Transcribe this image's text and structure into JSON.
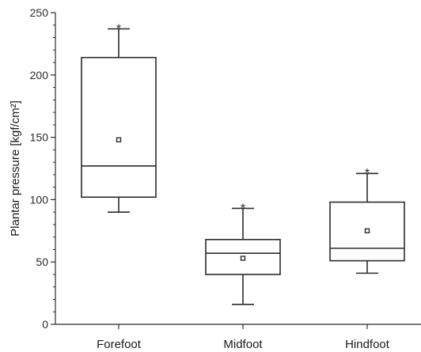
{
  "chart_data": {
    "type": "box",
    "categories": [
      "Forefoot",
      "Midfoot",
      "Hindfoot"
    ],
    "ylabel": "Plantar pressure [kgf/cm²]",
    "ylim": [
      0,
      250
    ],
    "yticks": [
      0,
      50,
      100,
      150,
      200,
      250
    ],
    "minor_tick_step": 10,
    "series": [
      {
        "category": "Forefoot",
        "whisker_low": 90,
        "q1": 102,
        "median": 127,
        "q3": 214,
        "whisker_high": 237,
        "mean": 148,
        "outlier_marker": "*",
        "outlier_value": 239
      },
      {
        "category": "Midfoot",
        "whisker_low": 16,
        "q1": 40,
        "median": 57,
        "q3": 68,
        "whisker_high": 93,
        "mean": 53,
        "outlier_marker": "*",
        "outlier_value": 95
      },
      {
        "category": "Hindfoot",
        "whisker_low": 41,
        "q1": 51,
        "median": 61,
        "q3": 98,
        "whisker_high": 121,
        "mean": 75,
        "outlier_marker": "*",
        "outlier_value": 123
      }
    ],
    "grid": false,
    "legend": "none"
  }
}
